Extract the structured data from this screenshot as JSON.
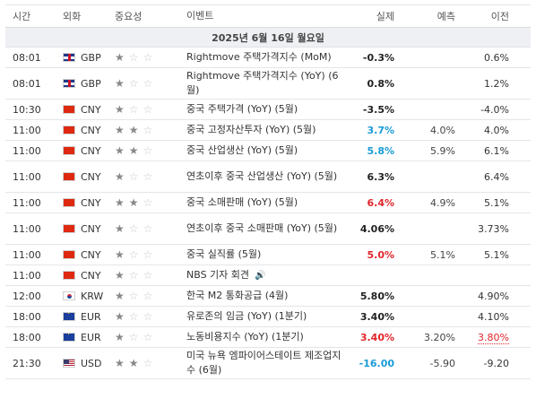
{
  "headers": {
    "time": "시간",
    "currency": "외화",
    "importance": "중요성",
    "event": "이벤트",
    "actual": "실제",
    "forecast": "예측",
    "previous": "이전"
  },
  "date_label": "2025년 6월 16일 월요일",
  "rows": [
    {
      "time": "08:01",
      "flag": "gb-flag-icon",
      "currency": "GBP",
      "stars": 1,
      "event": "Rightmove 주택가격지수 (MoM)",
      "actual": "-0.3%",
      "forecast": "",
      "previous": "0.6%"
    },
    {
      "time": "08:01",
      "flag": "gb-flag-icon",
      "currency": "GBP",
      "stars": 1,
      "event": "Rightmove 주택가격지수 (YoY) (6월)",
      "actual": "0.8%",
      "forecast": "",
      "previous": "1.2%"
    },
    {
      "time": "10:30",
      "flag": "cn-flag-icon",
      "currency": "CNY",
      "stars": 1,
      "event": "중국 주택가격 (YoY) (5월)",
      "actual": "-3.5%",
      "forecast": "",
      "previous": "-4.0%"
    },
    {
      "time": "11:00",
      "flag": "cn-flag-icon",
      "currency": "CNY",
      "stars": 2,
      "event": "중국 고정자산투자 (YoY) (5월)",
      "actual": "3.7%",
      "actual_color": "#1a9bd7",
      "forecast": "4.0%",
      "previous": "4.0%"
    },
    {
      "time": "11:00",
      "flag": "cn-flag-icon",
      "currency": "CNY",
      "stars": 2,
      "event": "중국 산업생산 (YoY) (5월)",
      "actual": "5.8%",
      "actual_color": "#1a9bd7",
      "forecast": "5.9%",
      "previous": "6.1%"
    },
    {
      "time": "11:00",
      "flag": "cn-flag-icon",
      "currency": "CNY",
      "stars": 1,
      "event": "연초이후 중국 산업생산 (YoY) (5월)",
      "actual": "6.3%",
      "forecast": "",
      "previous": "6.4%"
    },
    {
      "time": "11:00",
      "flag": "cn-flag-icon",
      "currency": "CNY",
      "stars": 2,
      "event": "중국 소매판매 (YoY) (5월)",
      "actual": "6.4%",
      "actual_color": "#e0262b",
      "forecast": "4.9%",
      "previous": "5.1%"
    },
    {
      "time": "11:00",
      "flag": "cn-flag-icon",
      "currency": "CNY",
      "stars": 1,
      "event": "연초이후 중국 소매판매 (YoY) (5월)",
      "actual": "4.06%",
      "forecast": "",
      "previous": "3.73%"
    },
    {
      "time": "11:00",
      "flag": "cn-flag-icon",
      "currency": "CNY",
      "stars": 1,
      "event": "중국 실직률 (5월)",
      "actual": "5.0%",
      "actual_color": "#e0262b",
      "forecast": "5.1%",
      "previous": "5.1%"
    },
    {
      "time": "11:00",
      "flag": "cn-flag-icon",
      "currency": "CNY",
      "stars": 1,
      "event": "NBS 기자 회견",
      "speaker": true,
      "actual": "",
      "forecast": "",
      "previous": ""
    },
    {
      "time": "12:00",
      "flag": "kr-flag-icon",
      "currency": "KRW",
      "stars": 1,
      "event": "한국 M2 통화공급 (4월)",
      "actual": "5.80%",
      "forecast": "",
      "previous": "4.90%"
    },
    {
      "time": "18:00",
      "flag": "eu-flag-icon",
      "currency": "EUR",
      "stars": 1,
      "event": "유로존의 임금 (YoY) (1분기)",
      "actual": "3.40%",
      "forecast": "",
      "previous": "4.10%"
    },
    {
      "time": "18:00",
      "flag": "eu-flag-icon",
      "currency": "EUR",
      "stars": 1,
      "event": "노동비용지수 (YoY) (1분기)",
      "actual": "3.40%",
      "actual_color": "#e0262b",
      "forecast": "3.20%",
      "previous": "3.80%",
      "previous_color": "#e0262b"
    },
    {
      "time": "21:30",
      "flag": "us-flag-icon",
      "currency": "USD",
      "stars": 2,
      "event": "미국 뉴욕 엠파이어스테이트 제조업지수 (6월)",
      "actual": "-16.00",
      "actual_color": "#1a9bd7",
      "forecast": "-5.90",
      "previous": "-9.20"
    }
  ]
}
